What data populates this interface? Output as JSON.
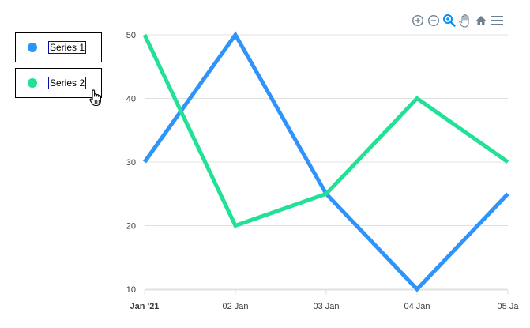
{
  "legend": {
    "items": [
      {
        "label": "Series 1",
        "color": "#2e93fa"
      },
      {
        "label": "Series 2",
        "color": "#20e195"
      }
    ]
  },
  "toolbar": {
    "icons": [
      "zoom-in-icon",
      "zoom-out-icon",
      "selection-zoom-icon",
      "pan-hand-icon",
      "home-reset-icon",
      "menu-icon"
    ],
    "active": "selection-zoom-icon",
    "active_color": "#008ffb",
    "icon_color": "#6e8192"
  },
  "chart_data": {
    "type": "line",
    "title": "",
    "xlabel": "",
    "ylabel": "",
    "categories": [
      "2021-01-01",
      "2021-01-02",
      "2021-01-03",
      "2021-01-04",
      "2021-01-05"
    ],
    "x_tick_labels": [
      "Jan '21",
      "02 Jan",
      "03 Jan",
      "04 Jan",
      "05 Ja"
    ],
    "y_ticks": [
      10,
      20,
      30,
      40,
      50
    ],
    "ylim": [
      10,
      50
    ],
    "grid": true,
    "legend_position": "left",
    "series": [
      {
        "name": "Series 1",
        "color": "#2e93fa",
        "values": [
          30,
          50,
          25,
          10,
          25
        ]
      },
      {
        "name": "Series 2",
        "color": "#20e195",
        "values": [
          50,
          20,
          25,
          40,
          30
        ]
      }
    ]
  }
}
